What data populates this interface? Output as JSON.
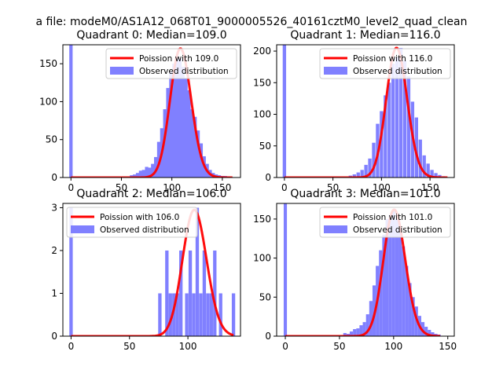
{
  "figure": {
    "suptitle": "a file: modeM0/AS1A12_068T01_9000005526_40161cztM0_level2_quad_clean"
  },
  "colors": {
    "poisson_line": "#ff0000",
    "observed_bars": "#8080ff"
  },
  "chart_data": [
    {
      "type": "bar",
      "title": "Quadrant 0: Median=109.0",
      "xlim": [
        -8,
        168
      ],
      "ylim": [
        0,
        175
      ],
      "xticks": [
        0,
        50,
        100,
        150
      ],
      "yticks": [
        0,
        50,
        100,
        150
      ],
      "legend": {
        "placement": "top-right",
        "line_label": "Poission with 109.0",
        "bar_label": "Observed distribution"
      },
      "bin_width": 3.3,
      "bins": [
        [
          0,
          175
        ],
        [
          60,
          3
        ],
        [
          63,
          4
        ],
        [
          66,
          6
        ],
        [
          69,
          9
        ],
        [
          72,
          10
        ],
        [
          75,
          14
        ],
        [
          78,
          13
        ],
        [
          81,
          18
        ],
        [
          84,
          27
        ],
        [
          87,
          47
        ],
        [
          90,
          65
        ],
        [
          93,
          90
        ],
        [
          96,
          118
        ],
        [
          99,
          140
        ],
        [
          102,
          150
        ],
        [
          105,
          160
        ],
        [
          108,
          157
        ],
        [
          111,
          146
        ],
        [
          114,
          130
        ],
        [
          117,
          115
        ],
        [
          120,
          90
        ],
        [
          123,
          80
        ],
        [
          126,
          62
        ],
        [
          129,
          45
        ],
        [
          132,
          28
        ],
        [
          135,
          18
        ],
        [
          138,
          10
        ],
        [
          141,
          6
        ],
        [
          144,
          4
        ],
        [
          147,
          3
        ],
        [
          150,
          2
        ],
        [
          153,
          2
        ],
        [
          156,
          1
        ]
      ],
      "poisson": {
        "lambda": 109.0,
        "scale": 170,
        "x_range": [
          0,
          160
        ]
      }
    },
    {
      "type": "bar",
      "title": "Quadrant 1: Median=116.0",
      "xlim": [
        -8,
        175
      ],
      "ylim": [
        0,
        210
      ],
      "xticks": [
        0,
        50,
        100,
        150
      ],
      "yticks": [
        0,
        50,
        100,
        150,
        200
      ],
      "legend": {
        "placement": "top-right",
        "line_label": "Poission with 116.0",
        "bar_label": "Observed distribution"
      },
      "bin_width": 3.5,
      "bins": [
        [
          0,
          210
        ],
        [
          68,
          3
        ],
        [
          72,
          5
        ],
        [
          76,
          8
        ],
        [
          80,
          12
        ],
        [
          84,
          20
        ],
        [
          88,
          30
        ],
        [
          92,
          55
        ],
        [
          96,
          85
        ],
        [
          100,
          105
        ],
        [
          104,
          130
        ],
        [
          108,
          150
        ],
        [
          112,
          180
        ],
        [
          116,
          190
        ],
        [
          120,
          205
        ],
        [
          124,
          185
        ],
        [
          128,
          160
        ],
        [
          132,
          120
        ],
        [
          136,
          95
        ],
        [
          140,
          60
        ],
        [
          144,
          35
        ],
        [
          148,
          22
        ],
        [
          152,
          12
        ],
        [
          156,
          7
        ],
        [
          160,
          4
        ],
        [
          164,
          2
        ]
      ],
      "poisson": {
        "lambda": 116.0,
        "scale": 205,
        "x_range": [
          0,
          168
        ]
      }
    },
    {
      "type": "bar",
      "title": "Quadrant 2: Median=106.0",
      "xlim": [
        -7,
        145
      ],
      "ylim": [
        0,
        3.1
      ],
      "xticks": [
        0,
        50,
        100
      ],
      "yticks": [
        0,
        1,
        2,
        3
      ],
      "legend": {
        "placement": "top-left",
        "line_label": "Poission with 106.0",
        "bar_label": "Observed distribution"
      },
      "bin_width": 2.9,
      "bins": [
        [
          0,
          3
        ],
        [
          76,
          1
        ],
        [
          82,
          2
        ],
        [
          85,
          1
        ],
        [
          88,
          1
        ],
        [
          91,
          1
        ],
        [
          94,
          2
        ],
        [
          99,
          1
        ],
        [
          102,
          2
        ],
        [
          105,
          1
        ],
        [
          108,
          3
        ],
        [
          111,
          1
        ],
        [
          114,
          2
        ],
        [
          117,
          1
        ],
        [
          120,
          1
        ],
        [
          123,
          2
        ],
        [
          128,
          1
        ],
        [
          139,
          1
        ]
      ],
      "poisson": {
        "lambda": 106.0,
        "scale": 2.95,
        "x_range": [
          0,
          139
        ]
      }
    },
    {
      "type": "bar",
      "title": "Quadrant 3: Median=101.0",
      "xlim": [
        -8,
        156
      ],
      "ylim": [
        0,
        170
      ],
      "xticks": [
        0,
        50,
        100,
        150
      ],
      "yticks": [
        0,
        50,
        100,
        150
      ],
      "legend": {
        "placement": "top-right",
        "line_label": "Poission with 101.0",
        "bar_label": "Observed distribution"
      },
      "bin_width": 3.0,
      "bins": [
        [
          0,
          170
        ],
        [
          55,
          4
        ],
        [
          58,
          3
        ],
        [
          61,
          6
        ],
        [
          64,
          9
        ],
        [
          67,
          10
        ],
        [
          70,
          14
        ],
        [
          73,
          18
        ],
        [
          76,
          28
        ],
        [
          79,
          45
        ],
        [
          82,
          65
        ],
        [
          85,
          90
        ],
        [
          88,
          110
        ],
        [
          91,
          130
        ],
        [
          94,
          150
        ],
        [
          97,
          155
        ],
        [
          100,
          160
        ],
        [
          103,
          150
        ],
        [
          106,
          135
        ],
        [
          109,
          115
        ],
        [
          112,
          90
        ],
        [
          115,
          68
        ],
        [
          118,
          50
        ],
        [
          121,
          38
        ],
        [
          124,
          26
        ],
        [
          127,
          18
        ],
        [
          130,
          12
        ],
        [
          133,
          8
        ],
        [
          136,
          5
        ],
        [
          139,
          3
        ],
        [
          142,
          2
        ]
      ],
      "poisson": {
        "lambda": 101.0,
        "scale": 162,
        "x_range": [
          0,
          143
        ]
      }
    }
  ]
}
